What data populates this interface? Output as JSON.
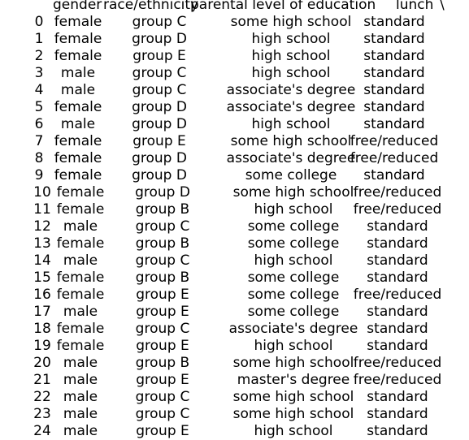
{
  "header": {
    "gender": "gender",
    "race": "race/ethnicity",
    "education": "parental level of education",
    "lunch": "lunch",
    "continuation": "\\"
  },
  "rows": [
    {
      "index": "0",
      "gender": "female",
      "race": "group C",
      "education": "some high school",
      "lunch": "standard"
    },
    {
      "index": "1",
      "gender": "female",
      "race": "group D",
      "education": "high school",
      "lunch": "standard"
    },
    {
      "index": "2",
      "gender": "female",
      "race": "group E",
      "education": "high school",
      "lunch": "standard"
    },
    {
      "index": "3",
      "gender": "male",
      "race": "group C",
      "education": "high school",
      "lunch": "standard"
    },
    {
      "index": "4",
      "gender": "male",
      "race": "group C",
      "education": "associate's degree",
      "lunch": "standard"
    },
    {
      "index": "5",
      "gender": "female",
      "race": "group D",
      "education": "associate's degree",
      "lunch": "standard"
    },
    {
      "index": "6",
      "gender": "male",
      "race": "group D",
      "education": "high school",
      "lunch": "standard"
    },
    {
      "index": "7",
      "gender": "female",
      "race": "group E",
      "education": "some high school",
      "lunch": "free/reduced"
    },
    {
      "index": "8",
      "gender": "female",
      "race": "group D",
      "education": "associate's degree",
      "lunch": "free/reduced"
    },
    {
      "index": "9",
      "gender": "female",
      "race": "group D",
      "education": "some college",
      "lunch": "standard"
    },
    {
      "index": "10",
      "gender": "female",
      "race": "group D",
      "education": "some high school",
      "lunch": "free/reduced"
    },
    {
      "index": "11",
      "gender": "female",
      "race": "group B",
      "education": "high school",
      "lunch": "free/reduced"
    },
    {
      "index": "12",
      "gender": "male",
      "race": "group C",
      "education": "some college",
      "lunch": "standard"
    },
    {
      "index": "13",
      "gender": "female",
      "race": "group B",
      "education": "some college",
      "lunch": "standard"
    },
    {
      "index": "14",
      "gender": "male",
      "race": "group C",
      "education": "high school",
      "lunch": "standard"
    },
    {
      "index": "15",
      "gender": "female",
      "race": "group B",
      "education": "some college",
      "lunch": "standard"
    },
    {
      "index": "16",
      "gender": "female",
      "race": "group E",
      "education": "some college",
      "lunch": "free/reduced"
    },
    {
      "index": "17",
      "gender": "male",
      "race": "group E",
      "education": "some college",
      "lunch": "standard"
    },
    {
      "index": "18",
      "gender": "female",
      "race": "group C",
      "education": "associate's degree",
      "lunch": "standard"
    },
    {
      "index": "19",
      "gender": "female",
      "race": "group E",
      "education": "high school",
      "lunch": "standard"
    },
    {
      "index": "20",
      "gender": "male",
      "race": "group B",
      "education": "some high school",
      "lunch": "free/reduced"
    },
    {
      "index": "21",
      "gender": "male",
      "race": "group E",
      "education": "master's degree",
      "lunch": "free/reduced"
    },
    {
      "index": "22",
      "gender": "male",
      "race": "group C",
      "education": "some high school",
      "lunch": "standard"
    },
    {
      "index": "23",
      "gender": "male",
      "race": "group C",
      "education": "some high school",
      "lunch": "standard"
    },
    {
      "index": "24",
      "gender": "male",
      "race": "group E",
      "education": "high school",
      "lunch": "standard"
    }
  ]
}
